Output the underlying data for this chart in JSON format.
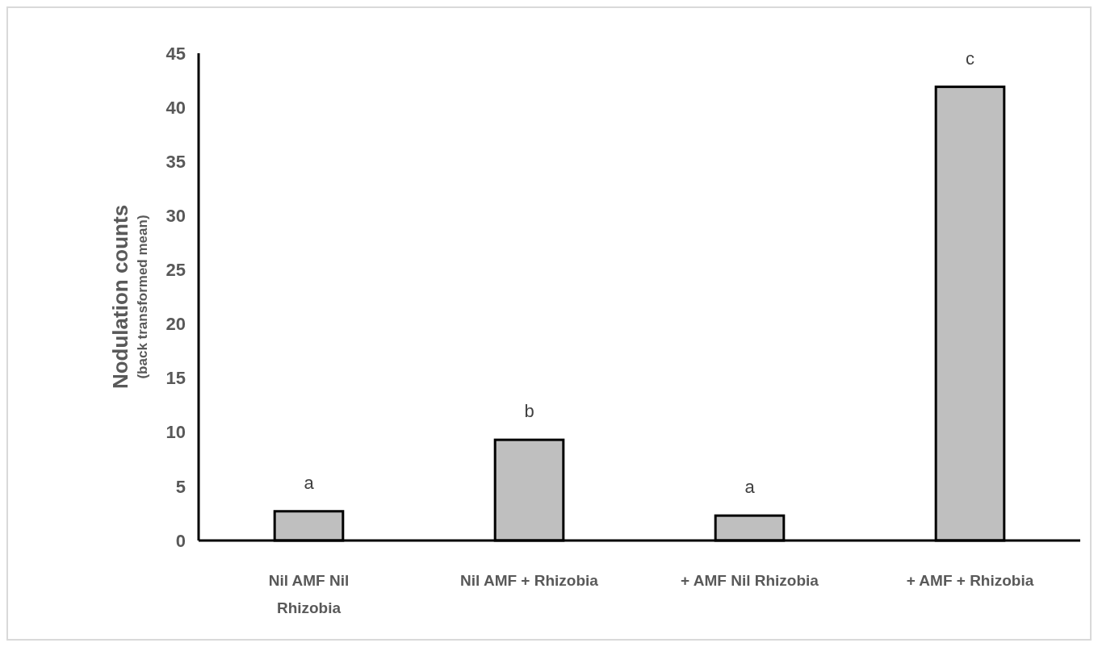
{
  "chart_data": {
    "type": "bar",
    "ylabel": "Nodulation counts\n(back transformed mean)",
    "categories": [
      "Nil AMF Nil Rhizobia",
      "Nil AMF + Rhizobia",
      "+ AMF Nil Rhizobia",
      "+ AMF + Rhizobia"
    ],
    "values": [
      2.7,
      9.3,
      2.3,
      41.9
    ],
    "color": "#bfbfbf",
    "ylim": [
      0,
      45
    ],
    "yticks": [
      0,
      5,
      10,
      15,
      20,
      25,
      30,
      35,
      40,
      45
    ],
    "grid": false,
    "annotations": [
      {
        "text": "a",
        "x": "Nil AMF Nil Rhizobia",
        "y": 2.7
      },
      {
        "text": "b",
        "x": "Nil AMF + Rhizobia",
        "y": 9.3
      },
      {
        "text": "a",
        "x": "+ AMF Nil Rhizobia",
        "y": 2.3
      },
      {
        "text": "c",
        "x": "+ AMF + Rhizobia",
        "y": 41.9
      }
    ]
  }
}
